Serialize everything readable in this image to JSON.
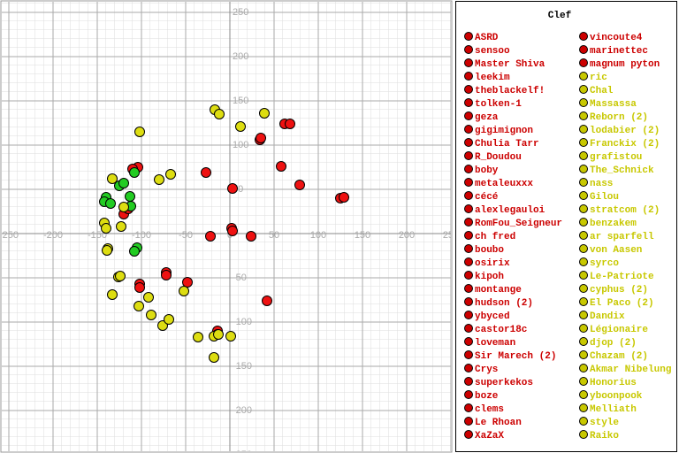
{
  "chart_data": {
    "type": "scatter",
    "xlim": [
      -250,
      250
    ],
    "ylim": [
      -250,
      250
    ],
    "xticks": [
      -250,
      -200,
      -150,
      -100,
      -50,
      0,
      50,
      100,
      150,
      200,
      250
    ],
    "yticks": [
      -250,
      -200,
      -150,
      -100,
      -50,
      50,
      100,
      150,
      200,
      250
    ],
    "grid": true,
    "series": [
      {
        "color": "#ee1111",
        "x": [
          -104,
          -110,
          -120,
          -115,
          -27,
          3,
          34,
          35,
          62,
          68,
          58,
          79,
          125,
          129,
          -22,
          2,
          3,
          24,
          -72,
          -72,
          -102,
          -102,
          -48,
          42,
          -14,
          -14
        ],
        "y": [
          75,
          73,
          22,
          28,
          69,
          51,
          106,
          108,
          124,
          124,
          76,
          55,
          40,
          41,
          -3,
          6,
          3,
          -3,
          -44,
          -47,
          -57,
          -61,
          -55,
          -76,
          -110,
          -114
        ]
      },
      {
        "color": "#22cc22",
        "x": [
          -140,
          -142,
          -125,
          -120,
          -113,
          -112,
          -108,
          -105,
          -108,
          -135
        ],
        "y": [
          41,
          36,
          54,
          57,
          42,
          31,
          69,
          -16,
          -20,
          34
        ]
      },
      {
        "color": "#dddd11",
        "x": [
          -102,
          -17,
          -12,
          12,
          39,
          -67,
          -80,
          -133,
          -142,
          -140,
          -123,
          -120,
          -138,
          -139,
          -126,
          -124,
          -133,
          -103,
          -92,
          -89,
          -76,
          -69,
          -52,
          -36,
          -18,
          -13,
          1,
          -18
        ],
        "y": [
          115,
          140,
          135,
          121,
          136,
          67,
          61,
          62,
          12,
          6,
          8,
          30,
          -17,
          -19,
          -49,
          -48,
          -69,
          -82,
          -72,
          -92,
          -104,
          -97,
          -65,
          -117,
          -116,
          -114,
          -116,
          -140
        ]
      }
    ],
    "legend": {
      "title": "Clef",
      "entries": [
        {
          "name": "ASRD",
          "color": "#cc0000"
        },
        {
          "name": "sensoo",
          "color": "#cc0000"
        },
        {
          "name": "Master Shiva",
          "color": "#cc0000"
        },
        {
          "name": "leekim",
          "color": "#cc0000"
        },
        {
          "name": "theblackelf!",
          "color": "#cc0000"
        },
        {
          "name": "tolken-1",
          "color": "#cc0000"
        },
        {
          "name": "geza",
          "color": "#cc0000"
        },
        {
          "name": "gigimignon",
          "color": "#cc0000"
        },
        {
          "name": "Chulia Tarr",
          "color": "#cc0000"
        },
        {
          "name": "R_Doudou",
          "color": "#cc0000"
        },
        {
          "name": "boby",
          "color": "#cc0000"
        },
        {
          "name": "metaleuxxx",
          "color": "#cc0000"
        },
        {
          "name": "cécé",
          "color": "#cc0000"
        },
        {
          "name": "alexlegauloi",
          "color": "#cc0000"
        },
        {
          "name": "RomFou_Seigneur",
          "color": "#cc0000"
        },
        {
          "name": "ch fred",
          "color": "#cc0000"
        },
        {
          "name": "boubo",
          "color": "#cc0000"
        },
        {
          "name": "osirix",
          "color": "#cc0000"
        },
        {
          "name": "kipoh",
          "color": "#cc0000"
        },
        {
          "name": "montange",
          "color": "#cc0000"
        },
        {
          "name": "hudson (2)",
          "color": "#cc0000"
        },
        {
          "name": "ybyced",
          "color": "#cc0000"
        },
        {
          "name": "castor18c",
          "color": "#cc0000"
        },
        {
          "name": "loveman",
          "color": "#cc0000"
        },
        {
          "name": "Sir Marech (2)",
          "color": "#cc0000"
        },
        {
          "name": "Crys",
          "color": "#cc0000"
        },
        {
          "name": "superkekos",
          "color": "#cc0000"
        },
        {
          "name": "boze",
          "color": "#cc0000"
        },
        {
          "name": "clems",
          "color": "#cc0000"
        },
        {
          "name": "Le Rhoan",
          "color": "#cc0000"
        },
        {
          "name": "XaZaX",
          "color": "#cc0000"
        },
        {
          "name": "vincoute4",
          "color": "#cc0000"
        },
        {
          "name": "marinettec",
          "color": "#cc0000"
        },
        {
          "name": "magnum pyton",
          "color": "#cc0000"
        },
        {
          "name": "ric",
          "color": "#c8c800"
        },
        {
          "name": "Chal",
          "color": "#c8c800"
        },
        {
          "name": "Massassa",
          "color": "#c8c800"
        },
        {
          "name": "Reborn (2)",
          "color": "#c8c800"
        },
        {
          "name": "lodabier (2)",
          "color": "#c8c800"
        },
        {
          "name": "Franckix (2)",
          "color": "#c8c800"
        },
        {
          "name": "grafistou",
          "color": "#c8c800"
        },
        {
          "name": "The_Schnick",
          "color": "#c8c800"
        },
        {
          "name": "nass",
          "color": "#c8c800"
        },
        {
          "name": "Gilou",
          "color": "#c8c800"
        },
        {
          "name": "stratcom (2)",
          "color": "#c8c800"
        },
        {
          "name": "benzakem",
          "color": "#c8c800"
        },
        {
          "name": "ar sparfell",
          "color": "#c8c800"
        },
        {
          "name": "von Aasen",
          "color": "#c8c800"
        },
        {
          "name": "syrco",
          "color": "#c8c800"
        },
        {
          "name": "Le-Patriote",
          "color": "#c8c800"
        },
        {
          "name": "cyphus (2)",
          "color": "#c8c800"
        },
        {
          "name": "El Paco (2)",
          "color": "#c8c800"
        },
        {
          "name": "Dandix",
          "color": "#c8c800"
        },
        {
          "name": "Légionaire",
          "color": "#c8c800"
        },
        {
          "name": "djop (2)",
          "color": "#c8c800"
        },
        {
          "name": "Chazam (2)",
          "color": "#c8c800"
        },
        {
          "name": "Akmar Nibelung",
          "color": "#c8c800"
        },
        {
          "name": "Honorius",
          "color": "#c8c800"
        },
        {
          "name": "yboonpook",
          "color": "#c8c800"
        },
        {
          "name": "Melliath",
          "color": "#c8c800"
        },
        {
          "name": "style",
          "color": "#c8c800"
        },
        {
          "name": "Raiko",
          "color": "#c8c800"
        }
      ]
    }
  }
}
